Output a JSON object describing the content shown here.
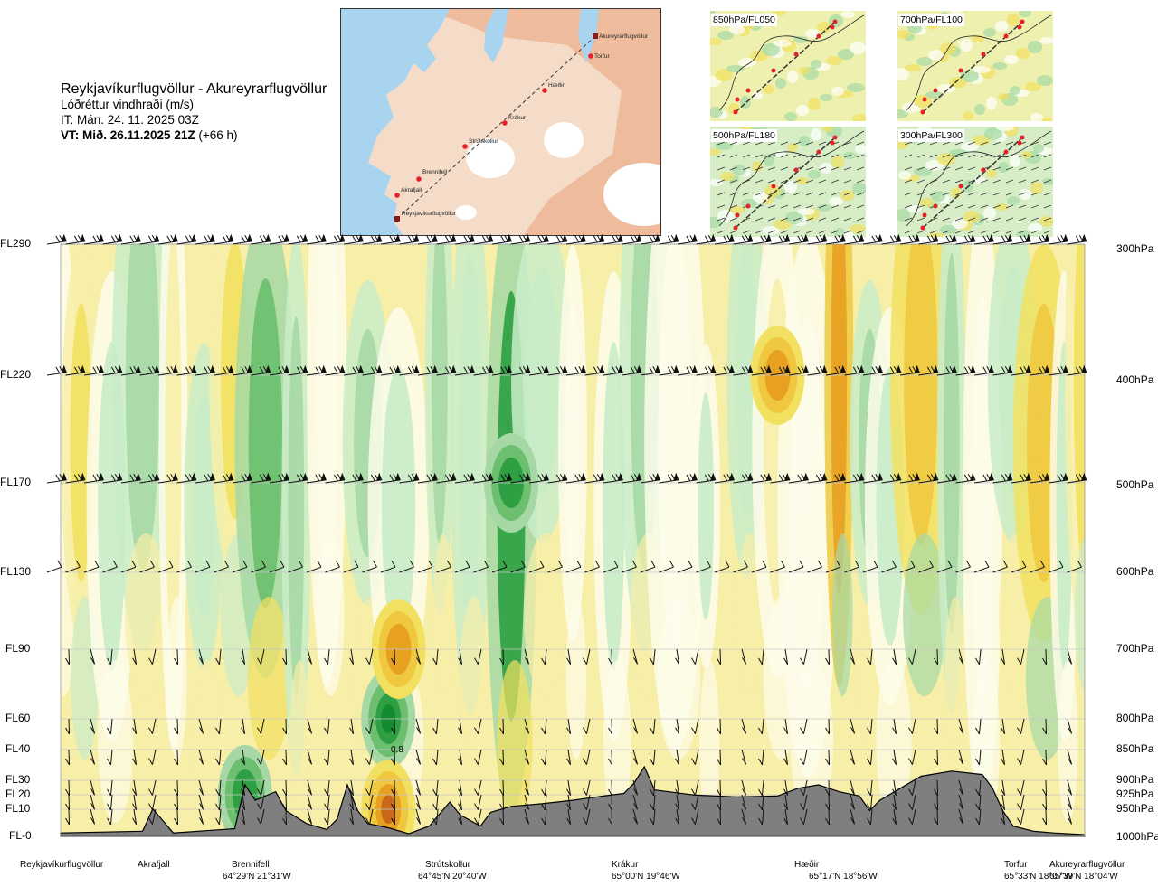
{
  "header": {
    "route_title": "Reykjavíkurflugvöllur - Akureyrarflugvöllur",
    "variable": "Lóðréttur vindhraði (m/s)",
    "issue_time": "IT: Mán. 24. 11. 2025 03Z",
    "valid_prefix": "VT: Mið. 26.11.2025 21Z",
    "valid_suffix": " (+66 h)"
  },
  "route_map": {
    "points": [
      {
        "name": "Reykjavíkurflugvöllur",
        "marker": "square"
      },
      {
        "name": "Akrafjall",
        "marker": "dot"
      },
      {
        "name": "Brennifell",
        "marker": "dot"
      },
      {
        "name": "Strútskollur",
        "marker": "dot"
      },
      {
        "name": "Krákur",
        "marker": "dot"
      },
      {
        "name": "Hæðir",
        "marker": "dot"
      },
      {
        "name": "Torfur",
        "marker": "dot"
      },
      {
        "name": "Akureyrarflugvöllur",
        "marker": "square"
      }
    ],
    "colors": {
      "sea": "#a8d4f0",
      "land_low": "#f5dcc8",
      "land_high": "#e8a27a",
      "ice": "#ffffff",
      "route": "#333333",
      "point": "#e8202a",
      "airport": "#8b1a1a"
    }
  },
  "thumbnails": [
    {
      "label": "850hPa/FL050"
    },
    {
      "label": "700hPa/FL100"
    },
    {
      "label": "500hPa/FL180"
    },
    {
      "label": "300hPa/FL300"
    }
  ],
  "levels": [
    {
      "fl": "FL290",
      "hpa": "300hPa"
    },
    {
      "fl": "FL220",
      "hpa": "400hPa"
    },
    {
      "fl": "FL170",
      "hpa": "500hPa"
    },
    {
      "fl": "FL130",
      "hpa": "600hPa"
    },
    {
      "fl": "FL90",
      "hpa": "700hPa"
    },
    {
      "fl": "FL60",
      "hpa": "800hPa"
    },
    {
      "fl": "FL40",
      "hpa": "850hPa"
    },
    {
      "fl": "FL30",
      "hpa": "900hPa"
    },
    {
      "fl": "FL20",
      "hpa": "925hPa"
    },
    {
      "fl": "FL10",
      "hpa": "950hPa"
    },
    {
      "fl": "FL-0",
      "hpa": "1000hPa"
    }
  ],
  "stations": [
    {
      "name": "Reykjavíkurflugvöllur",
      "coord": ""
    },
    {
      "name": "Akrafjall",
      "coord": ""
    },
    {
      "name": "Brennifell",
      "coord": "64°29'N 21°31'W"
    },
    {
      "name": "Strútskollur",
      "coord": "64°45'N 20°40'W"
    },
    {
      "name": "Krákur",
      "coord": "65°00'N 19°46'W"
    },
    {
      "name": "Hæðir",
      "coord": "65°17'N 18°56'W"
    },
    {
      "name": "Torfur",
      "coord": "65°33'N 18°07'W"
    },
    {
      "name": "Akureyrarflugvöllur",
      "coord": "65°39'N 18°04'W"
    }
  ],
  "annotation": "0.8",
  "colors": {
    "up_1": "#c9ecc9",
    "up_2": "#a5d8a5",
    "up_3": "#6cbf6e",
    "up_4": "#2ea043",
    "up_5": "#138a2d",
    "down_1": "#f7eea8",
    "down_2": "#f2e060",
    "down_3": "#efc840",
    "down_4": "#e8a020",
    "down_5": "#c86818",
    "neutral": "#fdfcea",
    "terrain": "#7f7f7f",
    "grid": "#c8c8c8"
  },
  "chart_data": {
    "type": "heatmap",
    "title": "Lóðréttur vindhraði (m/s)",
    "xlabel": "",
    "ylabel": "",
    "y_left_ticks": [
      "FL290",
      "FL220",
      "FL170",
      "FL130",
      "FL90",
      "FL60",
      "FL40",
      "FL30",
      "FL20",
      "FL10",
      "FL-0"
    ],
    "y_right_ticks": [
      "300hPa",
      "400hPa",
      "500hPa",
      "600hPa",
      "700hPa",
      "800hPa",
      "850hPa",
      "900hPa",
      "925hPa",
      "950hPa",
      "1000hPa"
    ],
    "x_stations": [
      "Reykjavíkurflugvöllur",
      "Akrafjall",
      "Brennifell",
      "Strútskollur",
      "Krákur",
      "Hæðir",
      "Torfur",
      "Akureyrarflugvöllur"
    ],
    "grid": true,
    "field_columns": [
      {
        "xf": 0.0,
        "v": 0.1
      },
      {
        "xf": 0.02,
        "v": -0.6
      },
      {
        "xf": 0.05,
        "v": 0.2
      },
      {
        "xf": 0.08,
        "v": 0.5
      },
      {
        "xf": 0.11,
        "v": -0.2
      },
      {
        "xf": 0.14,
        "v": 0.3
      },
      {
        "xf": 0.17,
        "v": -0.6
      },
      {
        "xf": 0.2,
        "v": 0.8
      },
      {
        "xf": 0.23,
        "v": 0.4
      },
      {
        "xf": 0.26,
        "v": 0.1
      },
      {
        "xf": 0.3,
        "v": 0.5
      },
      {
        "xf": 0.33,
        "v": 0.2
      },
      {
        "xf": 0.37,
        "v": 0.6
      },
      {
        "xf": 0.4,
        "v": 0.3
      },
      {
        "xf": 0.44,
        "v": 1.1
      },
      {
        "xf": 0.47,
        "v": 0.3
      },
      {
        "xf": 0.5,
        "v": -0.1
      },
      {
        "xf": 0.54,
        "v": 0.2
      },
      {
        "xf": 0.57,
        "v": 0.6
      },
      {
        "xf": 0.6,
        "v": 0.1
      },
      {
        "xf": 0.63,
        "v": 0.2
      },
      {
        "xf": 0.67,
        "v": 0.3
      },
      {
        "xf": 0.7,
        "v": -0.2
      },
      {
        "xf": 0.73,
        "v": 0.1
      },
      {
        "xf": 0.76,
        "v": -1.2
      },
      {
        "xf": 0.79,
        "v": 0.5
      },
      {
        "xf": 0.81,
        "v": 0.2
      },
      {
        "xf": 0.84,
        "v": -0.9
      },
      {
        "xf": 0.87,
        "v": 0.4
      },
      {
        "xf": 0.9,
        "v": 0.1
      },
      {
        "xf": 0.93,
        "v": 0.3
      },
      {
        "xf": 0.96,
        "v": -0.8
      },
      {
        "xf": 0.98,
        "v": 0.2
      },
      {
        "xf": 1.0,
        "v": -0.6
      }
    ],
    "hotspots": [
      {
        "xf": 0.32,
        "level": "FL60",
        "v": 1.5
      },
      {
        "xf": 0.33,
        "level": "FL90",
        "v": -1.0
      },
      {
        "xf": 0.32,
        "level": "FL10",
        "v": -1.5
      },
      {
        "xf": 0.18,
        "level": "FL20",
        "v": 0.9
      },
      {
        "xf": 0.44,
        "level": "FL170",
        "v": 1.1
      },
      {
        "xf": 0.7,
        "level": "FL220",
        "v": -1.2
      }
    ],
    "terrain_profile_m": [
      [
        0.0,
        40
      ],
      [
        0.08,
        60
      ],
      [
        0.09,
        320
      ],
      [
        0.1,
        180
      ],
      [
        0.11,
        40
      ],
      [
        0.17,
        90
      ],
      [
        0.18,
        600
      ],
      [
        0.19,
        420
      ],
      [
        0.21,
        520
      ],
      [
        0.22,
        300
      ],
      [
        0.24,
        150
      ],
      [
        0.26,
        80
      ],
      [
        0.27,
        200
      ],
      [
        0.28,
        600
      ],
      [
        0.29,
        300
      ],
      [
        0.3,
        150
      ],
      [
        0.32,
        100
      ],
      [
        0.34,
        30
      ],
      [
        0.36,
        120
      ],
      [
        0.38,
        400
      ],
      [
        0.39,
        250
      ],
      [
        0.41,
        120
      ],
      [
        0.42,
        280
      ],
      [
        0.44,
        350
      ],
      [
        0.47,
        380
      ],
      [
        0.5,
        420
      ],
      [
        0.53,
        470
      ],
      [
        0.55,
        500
      ],
      [
        0.56,
        620
      ],
      [
        0.57,
        810
      ],
      [
        0.58,
        540
      ],
      [
        0.62,
        480
      ],
      [
        0.66,
        460
      ],
      [
        0.7,
        470
      ],
      [
        0.72,
        560
      ],
      [
        0.74,
        600
      ],
      [
        0.76,
        520
      ],
      [
        0.78,
        470
      ],
      [
        0.79,
        300
      ],
      [
        0.8,
        420
      ],
      [
        0.82,
        560
      ],
      [
        0.84,
        700
      ],
      [
        0.87,
        760
      ],
      [
        0.9,
        720
      ],
      [
        0.91,
        560
      ],
      [
        0.92,
        300
      ],
      [
        0.93,
        120
      ],
      [
        0.95,
        60
      ],
      [
        0.97,
        40
      ],
      [
        1.0,
        20
      ]
    ]
  }
}
